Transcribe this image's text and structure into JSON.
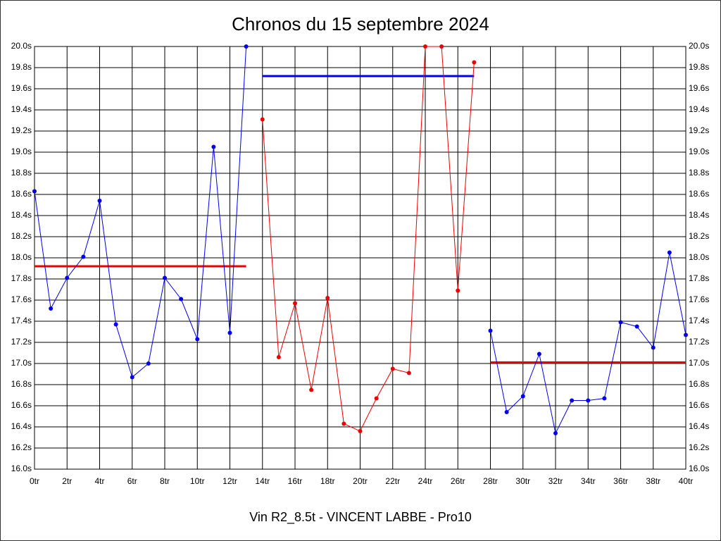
{
  "chart_data": {
    "type": "line",
    "title": "Chronos du 15 septembre 2024",
    "xlabel": "Vin R2_8.5t - VINCENT LABBE - Pro10",
    "xlim": [
      0,
      40
    ],
    "ylim": [
      16.0,
      20.0
    ],
    "grid": true,
    "xticks": [
      {
        "value": 0,
        "label": "0tr"
      },
      {
        "value": 2,
        "label": "2tr"
      },
      {
        "value": 4,
        "label": "4tr"
      },
      {
        "value": 6,
        "label": "6tr"
      },
      {
        "value": 8,
        "label": "8tr"
      },
      {
        "value": 10,
        "label": "10tr"
      },
      {
        "value": 12,
        "label": "12tr"
      },
      {
        "value": 14,
        "label": "14tr"
      },
      {
        "value": 16,
        "label": "16tr"
      },
      {
        "value": 18,
        "label": "18tr"
      },
      {
        "value": 20,
        "label": "20tr"
      },
      {
        "value": 22,
        "label": "22tr"
      },
      {
        "value": 24,
        "label": "24tr"
      },
      {
        "value": 26,
        "label": "26tr"
      },
      {
        "value": 28,
        "label": "28tr"
      },
      {
        "value": 30,
        "label": "30tr"
      },
      {
        "value": 32,
        "label": "32tr"
      },
      {
        "value": 34,
        "label": "34tr"
      },
      {
        "value": 36,
        "label": "36tr"
      },
      {
        "value": 38,
        "label": "38tr"
      },
      {
        "value": 40,
        "label": "40tr"
      }
    ],
    "yticks": [
      {
        "value": 16.0,
        "label": "16.0s"
      },
      {
        "value": 16.2,
        "label": "16.2s"
      },
      {
        "value": 16.4,
        "label": "16.4s"
      },
      {
        "value": 16.6,
        "label": "16.6s"
      },
      {
        "value": 16.8,
        "label": "16.8s"
      },
      {
        "value": 17.0,
        "label": "17.0s"
      },
      {
        "value": 17.2,
        "label": "17.2s"
      },
      {
        "value": 17.4,
        "label": "17.4s"
      },
      {
        "value": 17.6,
        "label": "17.6s"
      },
      {
        "value": 17.8,
        "label": "17.8s"
      },
      {
        "value": 18.0,
        "label": "18.0s"
      },
      {
        "value": 18.2,
        "label": "18.2s"
      },
      {
        "value": 18.4,
        "label": "18.4s"
      },
      {
        "value": 18.6,
        "label": "18.6s"
      },
      {
        "value": 18.8,
        "label": "18.8s"
      },
      {
        "value": 19.0,
        "label": "19.0s"
      },
      {
        "value": 19.2,
        "label": "19.2s"
      },
      {
        "value": 19.4,
        "label": "19.4s"
      },
      {
        "value": 19.6,
        "label": "19.6s"
      },
      {
        "value": 19.8,
        "label": "19.8s"
      },
      {
        "value": 20.0,
        "label": "20.0s"
      }
    ],
    "series": [
      {
        "color": "#0000ee",
        "x": [
          0,
          1,
          2,
          3,
          4,
          5,
          6,
          7,
          8,
          9,
          10,
          11,
          12,
          13
        ],
        "values": [
          18.63,
          17.52,
          17.81,
          18.01,
          18.54,
          17.37,
          16.87,
          17.0,
          17.81,
          17.61,
          17.23,
          19.05,
          17.29,
          20.0
        ]
      },
      {
        "color": "#ee0000",
        "x": [
          14,
          15,
          16,
          17,
          18,
          19,
          20,
          21,
          22,
          23,
          24,
          25,
          26,
          27
        ],
        "values": [
          19.31,
          17.06,
          17.57,
          16.75,
          17.62,
          16.43,
          16.36,
          16.67,
          16.95,
          16.91,
          20.0,
          20.0,
          17.69,
          19.85
        ]
      },
      {
        "color": "#0000ee",
        "x": [
          28,
          29,
          30,
          31,
          32,
          33,
          34,
          35,
          36,
          37,
          38,
          39,
          40
        ],
        "values": [
          17.31,
          16.54,
          16.69,
          17.09,
          16.34,
          16.65,
          16.65,
          16.67,
          17.39,
          17.35,
          17.15,
          18.05,
          17.27
        ]
      }
    ],
    "averages": [
      {
        "color": "#ee0000",
        "x": [
          0,
          13
        ],
        "values": [
          17.92,
          17.92
        ]
      },
      {
        "color": "#0000ee",
        "x": [
          14,
          27
        ],
        "values": [
          19.72,
          19.72
        ]
      },
      {
        "color": "#ee0000",
        "x": [
          28,
          40
        ],
        "values": [
          17.01,
          17.01
        ]
      }
    ]
  }
}
